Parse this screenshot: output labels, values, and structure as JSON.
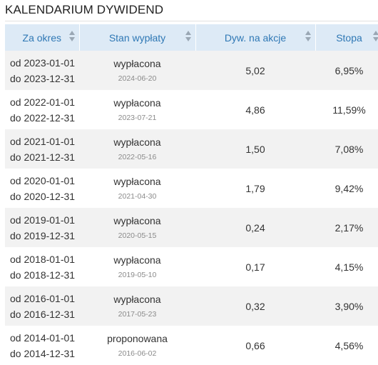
{
  "title": "KALENDARIUM DYWIDEND",
  "columns": [
    "Za okres",
    "Stan wypłaty",
    "Dyw. na akcje",
    "Stopa"
  ],
  "rows": [
    {
      "from": "od 2023-01-01",
      "to": "do 2023-12-31",
      "status": "wypłacona",
      "date": "2024-06-20",
      "dividend": "5,02",
      "rate": "6,95%"
    },
    {
      "from": "od 2022-01-01",
      "to": "do 2022-12-31",
      "status": "wypłacona",
      "date": "2023-07-21",
      "dividend": "4,86",
      "rate": "11,59%"
    },
    {
      "from": "od 2021-01-01",
      "to": "do 2021-12-31",
      "status": "wypłacona",
      "date": "2022-05-16",
      "dividend": "1,50",
      "rate": "7,08%"
    },
    {
      "from": "od 2020-01-01",
      "to": "do 2020-12-31",
      "status": "wypłacona",
      "date": "2021-04-30",
      "dividend": "1,79",
      "rate": "9,42%"
    },
    {
      "from": "od 2019-01-01",
      "to": "do 2019-12-31",
      "status": "wypłacona",
      "date": "2020-05-15",
      "dividend": "0,24",
      "rate": "2,17%"
    },
    {
      "from": "od 2018-01-01",
      "to": "do 2018-12-31",
      "status": "wypłacona",
      "date": "2019-05-10",
      "dividend": "0,17",
      "rate": "4,15%"
    },
    {
      "from": "od 2016-01-01",
      "to": "do 2016-12-31",
      "status": "wypłacona",
      "date": "2017-05-23",
      "dividend": "0,32",
      "rate": "3,90%"
    },
    {
      "from": "od 2014-01-01",
      "to": "do 2014-12-31",
      "status": "proponowana",
      "date": "2016-06-02",
      "dividend": "0,66",
      "rate": "4,56%"
    }
  ],
  "colors": {
    "header_bg": "#ddeaf6",
    "header_text": "#2f78b5",
    "row_alt": "#f2f2f2"
  }
}
